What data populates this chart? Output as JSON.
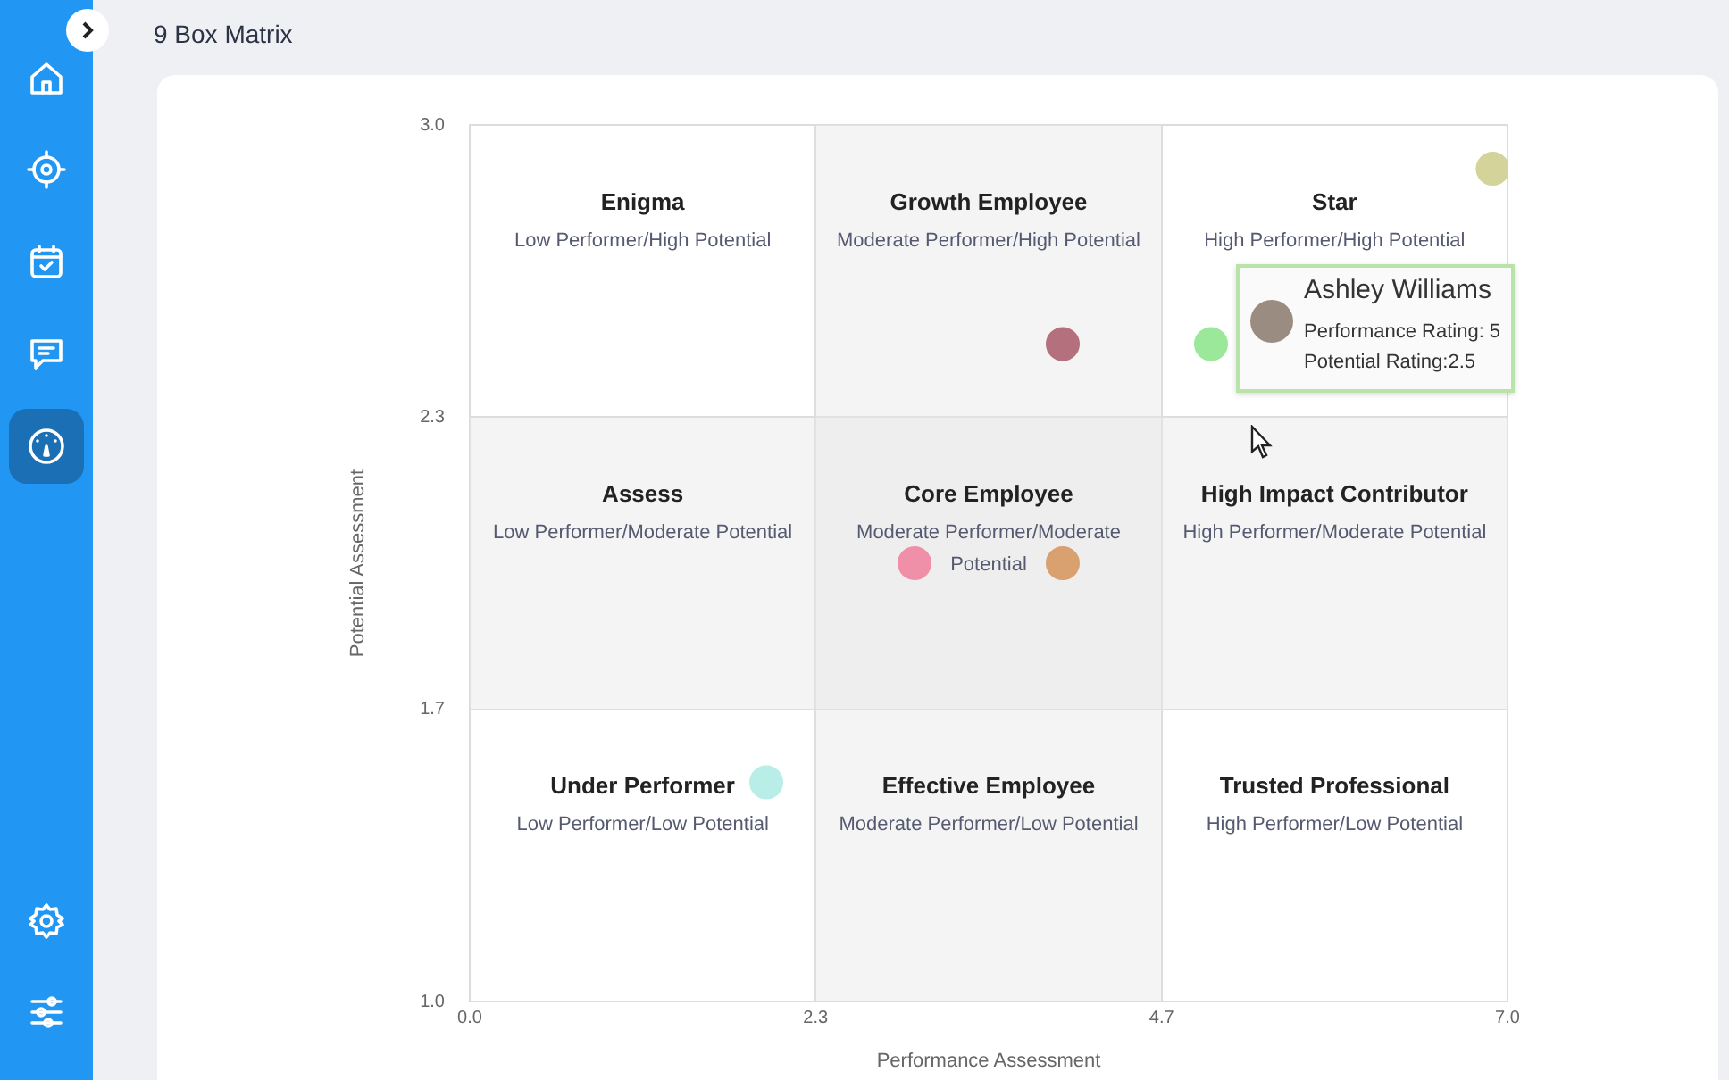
{
  "chart_data": {
    "type": "scatter",
    "title": "9 Box Matrix",
    "xlabel": "Performance Assessment",
    "ylabel": "Potential Assessment",
    "x": [
      6.9,
      4.0,
      5.0,
      3.0,
      4.0,
      2.0
    ],
    "values": [
      2.9,
      2.5,
      2.5,
      2.0,
      2.0,
      1.5
    ],
    "colors": [
      "#d4d49a",
      "#b5707e",
      "#9be89a",
      "#f08fa8",
      "#d9a070",
      "#b8ede8"
    ],
    "xlim": [
      0,
      7
    ],
    "xticks": [
      {
        "value": 0,
        "label": "0.0"
      },
      {
        "value": 2.333,
        "label": "2.3"
      },
      {
        "value": 4.667,
        "label": "4.7"
      },
      {
        "value": 7,
        "label": "7.0"
      }
    ],
    "ylim": [
      1,
      3
    ],
    "yticks": [
      {
        "value": 1,
        "label": "1.0"
      },
      {
        "value": 1.667,
        "label": "1.7"
      },
      {
        "value": 2.333,
        "label": "2.3"
      },
      {
        "value": 3,
        "label": "3.0"
      }
    ],
    "bands": [
      {
        "axis": "x",
        "from": 2.333,
        "to": 4.667,
        "color": "#e6e6e6"
      },
      {
        "axis": "y",
        "from": 1.667,
        "to": 2.333,
        "color": "#e6e6e6"
      }
    ],
    "annotations": [
      "Enigma",
      "Low Performer/High Potential",
      "Growth Employee",
      "Moderate Performer/High Potential",
      "Star",
      "High Performer/High Potential",
      "Assess",
      "Low Performer/Moderate Potential",
      "Core Employee",
      "Moderate Performer/Moderate Potential",
      "High Impact Contributor",
      "High Performer/Moderate Potential",
      "Under Performer",
      "Low Performer/Low Potential",
      "Effective Employee",
      "Moderate Performer/Low Potential",
      "Trusted Professional",
      "High Performer/Low Potential",
      "Ashley Williams\nPerformance Rating: 5\nPotential Rating:2.5"
    ],
    "grid": true,
    "legend": false,
    "marker": "circle"
  }
}
